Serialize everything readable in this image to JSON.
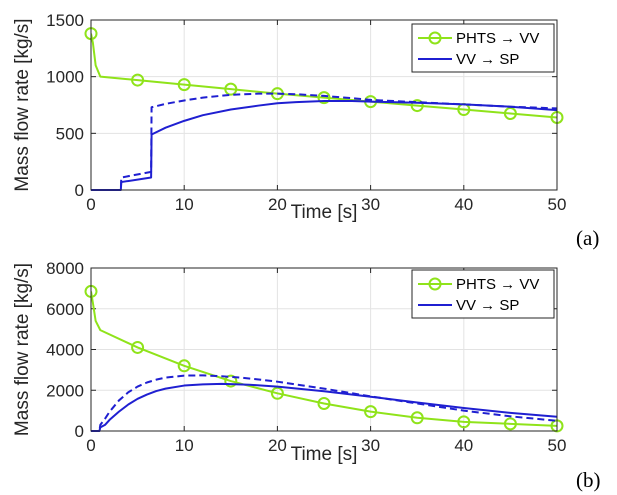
{
  "colors": {
    "green": "#8fe31a",
    "blue": "#1f1fd1",
    "grid": "#e3e3e3",
    "axis": "#262626"
  },
  "chart_data": [
    {
      "type": "line",
      "panel_label": "(a)",
      "xlabel": "Time [s]",
      "ylabel": "Mass flow rate [kg/s]",
      "xlim": [
        0,
        50
      ],
      "ylim": [
        0,
        1500
      ],
      "xticks": [
        0,
        10,
        20,
        30,
        40,
        50
      ],
      "yticks": [
        0,
        500,
        1000,
        1500
      ],
      "grid": true,
      "legend_position": "top-right",
      "series": [
        {
          "name": "PHTS → VV",
          "color": "#8fe31a",
          "style": "solid",
          "marker": "circle",
          "x": [
            0,
            0.2,
            0.5,
            1,
            5,
            10,
            15,
            20,
            25,
            30,
            35,
            40,
            45,
            50
          ],
          "y": [
            1380,
            1300,
            1100,
            1000,
            970,
            930,
            890,
            850,
            815,
            780,
            745,
            710,
            675,
            640
          ],
          "marker_x": [
            0,
            5,
            10,
            15,
            20,
            25,
            30,
            35,
            40,
            45,
            50
          ]
        },
        {
          "name": "VV → SP",
          "color": "#1f1fd1",
          "style": "solid",
          "x": [
            0,
            3.2,
            3.25,
            6.45,
            6.5,
            8,
            10,
            12,
            15,
            18,
            20,
            22,
            25,
            28,
            30,
            35,
            40,
            45,
            50
          ],
          "y": [
            0,
            0,
            70,
            110,
            490,
            550,
            610,
            660,
            710,
            745,
            765,
            775,
            785,
            785,
            780,
            770,
            755,
            735,
            705
          ]
        },
        {
          "name": "",
          "color": "#1f1fd1",
          "style": "dashed",
          "x": [
            0,
            3.2,
            3.25,
            6.45,
            6.5,
            8,
            10,
            12,
            15,
            18,
            20,
            22,
            25,
            28,
            30,
            35,
            40,
            45,
            50
          ],
          "y": [
            0,
            0,
            110,
            160,
            730,
            760,
            790,
            815,
            840,
            850,
            850,
            845,
            830,
            810,
            795,
            775,
            755,
            735,
            720
          ]
        }
      ]
    },
    {
      "type": "line",
      "panel_label": "(b)",
      "xlabel": "Time [s]",
      "ylabel": "Mass flow rate [kg/s]",
      "xlim": [
        0,
        50
      ],
      "ylim": [
        0,
        8000
      ],
      "xticks": [
        0,
        10,
        20,
        30,
        40,
        50
      ],
      "yticks": [
        0,
        2000,
        4000,
        6000,
        8000
      ],
      "grid": true,
      "legend_position": "top-right",
      "series": [
        {
          "name": "PHTS → VV",
          "color": "#8fe31a",
          "style": "solid",
          "marker": "circle",
          "x": [
            0,
            0.2,
            0.5,
            1,
            5,
            10,
            15,
            20,
            25,
            30,
            35,
            40,
            45,
            50
          ],
          "y": [
            6850,
            6300,
            5400,
            4950,
            4100,
            3200,
            2450,
            1850,
            1350,
            950,
            650,
            450,
            350,
            250
          ],
          "marker_x": [
            0,
            5,
            10,
            15,
            20,
            25,
            30,
            35,
            40,
            45,
            50
          ]
        },
        {
          "name": "VV → SP",
          "color": "#1f1fd1",
          "style": "solid",
          "x": [
            0,
            0.9,
            1.0,
            1.5,
            2,
            3,
            4,
            5,
            6,
            7,
            8,
            10,
            12,
            14,
            15,
            17,
            20,
            25,
            30,
            35,
            40,
            45,
            50
          ],
          "y": [
            0,
            0,
            180,
            300,
            550,
            950,
            1300,
            1580,
            1790,
            1960,
            2080,
            2230,
            2290,
            2310,
            2300,
            2270,
            2180,
            1950,
            1680,
            1400,
            1130,
            890,
            700
          ]
        },
        {
          "name": "",
          "color": "#1f1fd1",
          "style": "dashed",
          "x": [
            0,
            0.9,
            1.0,
            1.5,
            2,
            3,
            4,
            5,
            6,
            7,
            8,
            10,
            12,
            14,
            16,
            18,
            20,
            25,
            30,
            35,
            40,
            45,
            50
          ],
          "y": [
            0,
            0,
            300,
            600,
            950,
            1500,
            1900,
            2180,
            2380,
            2520,
            2620,
            2720,
            2730,
            2690,
            2620,
            2530,
            2420,
            2080,
            1700,
            1350,
            1000,
            720,
            500
          ]
        }
      ]
    }
  ]
}
